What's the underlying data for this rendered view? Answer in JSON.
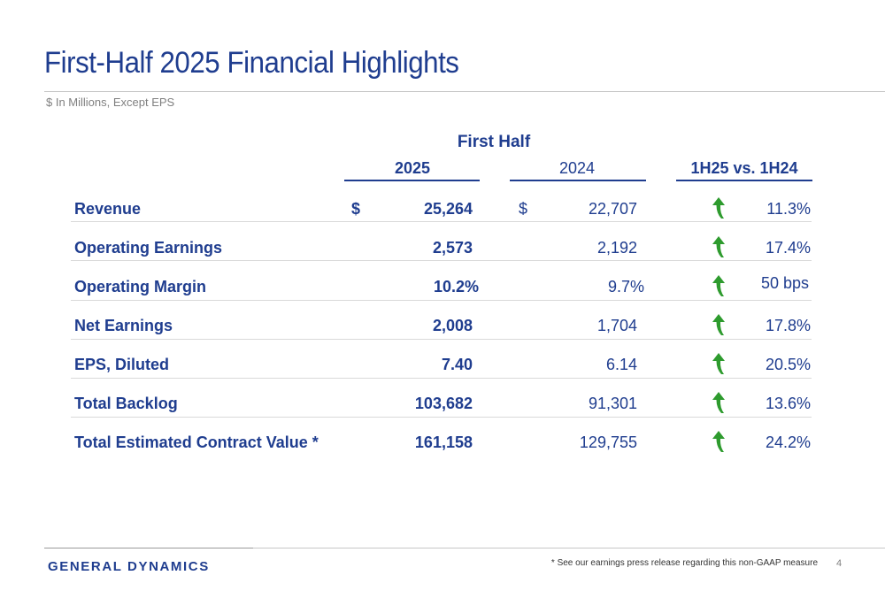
{
  "title": "First-Half 2025 Financial Highlights",
  "subtitle": "$ In Millions, Except EPS",
  "table": {
    "group_header": "First Half",
    "col_2025": "2025",
    "col_2024": "2024",
    "col_change": "1H25 vs. 1H24",
    "currency_symbol": "$",
    "trend_icon": "up-arrow-icon",
    "trend_color": "#2e9b2e",
    "rows": [
      {
        "label": "Revenue",
        "v2025": "25,264",
        "v2024": "22,707",
        "change": "11.3%"
      },
      {
        "label": "Operating Earnings",
        "v2025": "2,573",
        "v2024": "2,192",
        "change": "17.4%"
      },
      {
        "label": "Operating Margin",
        "v2025": "10.2%",
        "v2024": "9.7%",
        "change": "50 bps"
      },
      {
        "label": "Net Earnings",
        "v2025": "2,008",
        "v2024": "1,704",
        "change": "17.8%"
      },
      {
        "label": "EPS, Diluted",
        "v2025": "7.40",
        "v2024": "6.14",
        "change": "20.5%"
      },
      {
        "label": "Total Backlog",
        "v2025": "103,682",
        "v2024": "91,301",
        "change": "13.6%"
      },
      {
        "label": "Total Estimated Contract Value *",
        "v2025": "161,158",
        "v2024": "129,755",
        "change": "24.2%"
      }
    ]
  },
  "footer": {
    "logo": "GENERAL DYNAMICS",
    "footnote": "* See our earnings press release regarding this non-GAAP measure",
    "page": "4"
  },
  "colors": {
    "brand": "#1f3d8f",
    "rule": "#c6c6c6",
    "up": "#2e9b2e"
  }
}
